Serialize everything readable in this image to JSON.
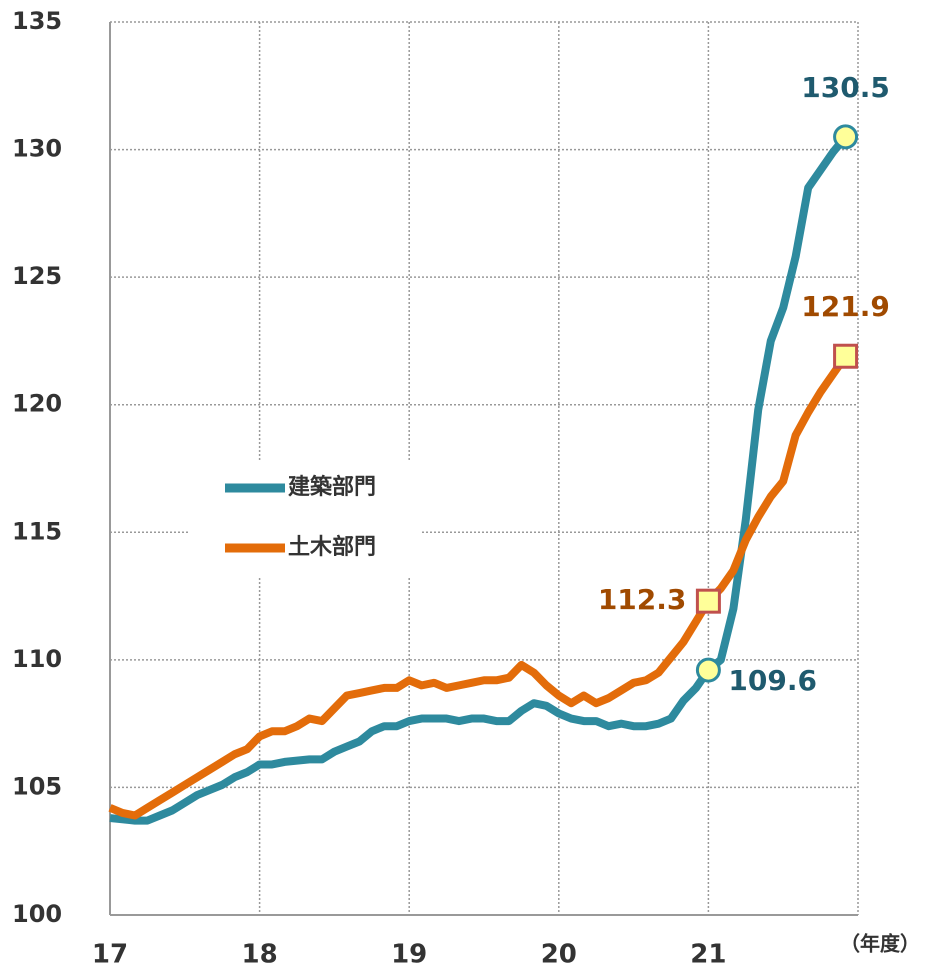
{
  "chart_data": {
    "type": "line",
    "x": [
      17,
      17.083,
      17.167,
      17.25,
      17.333,
      17.417,
      17.5,
      17.583,
      17.667,
      17.75,
      17.833,
      17.917,
      18,
      18.083,
      18.167,
      18.25,
      18.333,
      18.417,
      18.5,
      18.583,
      18.667,
      18.75,
      18.833,
      18.917,
      19,
      19.083,
      19.167,
      19.25,
      19.333,
      19.417,
      19.5,
      19.583,
      19.667,
      19.75,
      19.833,
      19.917,
      20,
      20.083,
      20.167,
      20.25,
      20.333,
      20.417,
      20.5,
      20.583,
      20.667,
      20.75,
      20.833,
      20.917,
      21,
      21.083,
      21.167,
      21.25,
      21.333,
      21.417,
      21.5,
      21.583,
      21.667,
      21.75,
      21.833,
      21.917
    ],
    "series": [
      {
        "name": "建築部門",
        "color": "#2e8a9e",
        "label_color": "#1f5a6e",
        "marker": "circle",
        "marker_edge": "#2e8a9e",
        "values": [
          103.8,
          103.75,
          103.7,
          103.7,
          103.9,
          104.1,
          104.4,
          104.7,
          104.9,
          105.1,
          105.4,
          105.6,
          105.9,
          105.9,
          106.0,
          106.05,
          106.1,
          106.1,
          106.4,
          106.6,
          106.8,
          107.2,
          107.4,
          107.4,
          107.6,
          107.7,
          107.7,
          107.7,
          107.6,
          107.7,
          107.7,
          107.6,
          107.6,
          108.0,
          108.3,
          108.2,
          107.9,
          107.7,
          107.6,
          107.6,
          107.4,
          107.5,
          107.4,
          107.4,
          107.5,
          107.7,
          108.4,
          108.9,
          109.6,
          110.0,
          112.0,
          115.5,
          119.8,
          122.5,
          123.8,
          125.8,
          128.5,
          129.2,
          129.9,
          130.5
        ],
        "value_labels": [
          null,
          null,
          null,
          null,
          null,
          null,
          null,
          null,
          null,
          null,
          null,
          null,
          null,
          null,
          null,
          null,
          null,
          null,
          null,
          null,
          null,
          null,
          null,
          null,
          null,
          null,
          null,
          null,
          null,
          null,
          null,
          null,
          null,
          null,
          null,
          null,
          null,
          null,
          null,
          null,
          null,
          null,
          null,
          null,
          null,
          null,
          null,
          null,
          "109.6",
          null,
          null,
          null,
          null,
          null,
          null,
          null,
          null,
          null,
          null,
          "130.5"
        ]
      },
      {
        "name": "土木部門",
        "color": "#e36c0a",
        "label_color": "#a04a00",
        "marker": "square",
        "marker_edge": "#c0504d",
        "values": [
          104.2,
          104.0,
          103.9,
          104.2,
          104.5,
          104.8,
          105.1,
          105.4,
          105.7,
          106.0,
          106.3,
          106.5,
          107.0,
          107.2,
          107.2,
          107.4,
          107.7,
          107.6,
          108.1,
          108.6,
          108.7,
          108.8,
          108.9,
          108.9,
          109.2,
          109.0,
          109.1,
          108.9,
          109.0,
          109.1,
          109.2,
          109.2,
          109.3,
          109.8,
          109.5,
          109.0,
          108.6,
          108.3,
          108.6,
          108.3,
          108.5,
          108.8,
          109.1,
          109.2,
          109.5,
          110.1,
          110.7,
          111.5,
          112.3,
          112.8,
          113.5,
          114.7,
          115.6,
          116.4,
          117.0,
          118.8,
          119.7,
          120.5,
          121.2,
          121.9
        ],
        "value_labels": [
          null,
          null,
          null,
          null,
          null,
          null,
          null,
          null,
          null,
          null,
          null,
          null,
          null,
          null,
          null,
          null,
          null,
          null,
          null,
          null,
          null,
          null,
          null,
          null,
          null,
          null,
          null,
          null,
          null,
          null,
          null,
          null,
          null,
          null,
          null,
          null,
          null,
          null,
          null,
          null,
          null,
          null,
          null,
          null,
          null,
          null,
          null,
          null,
          "112.3",
          null,
          null,
          null,
          null,
          null,
          null,
          null,
          null,
          null,
          null,
          "121.9"
        ]
      }
    ],
    "xlim": [
      17,
      22
    ],
    "xticks": [
      17,
      18,
      19,
      20,
      21
    ],
    "ylim": [
      100,
      135
    ],
    "yticks": [
      100,
      105,
      110,
      115,
      120,
      125,
      130,
      135
    ],
    "x_unit": "（年度）",
    "grid": true,
    "legend": "center-left"
  }
}
